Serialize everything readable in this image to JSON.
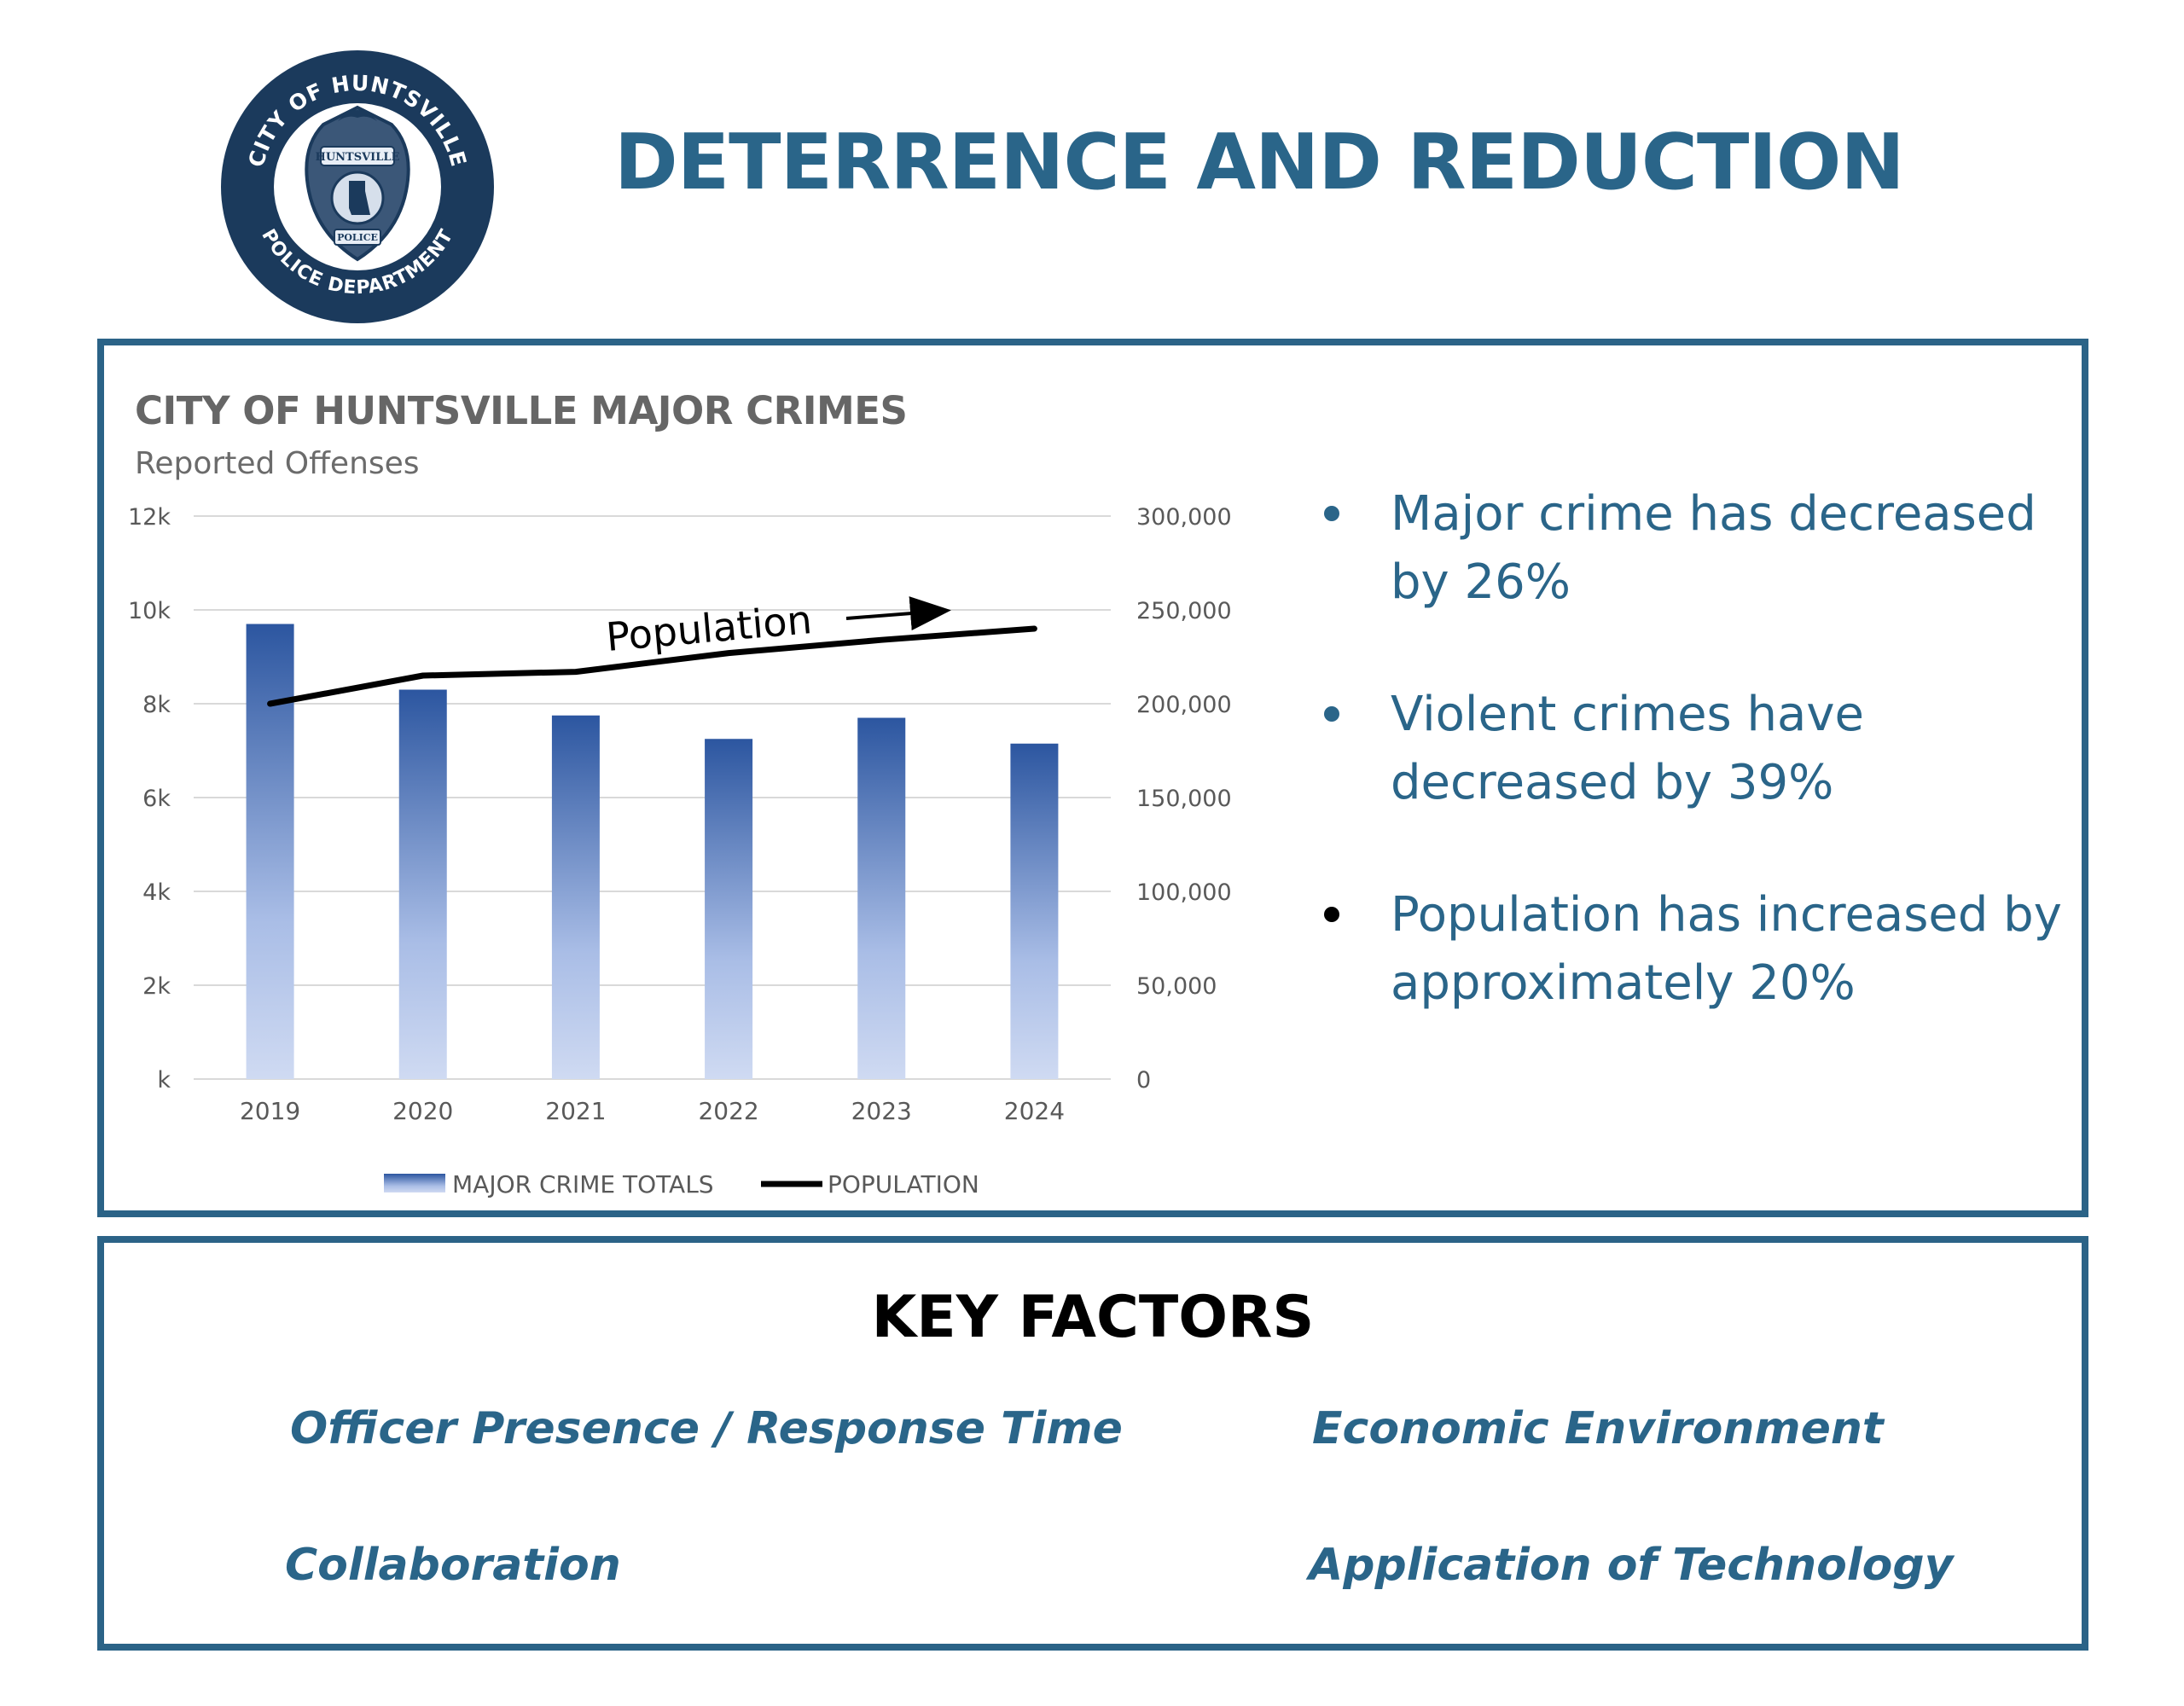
{
  "logo": {
    "top_text": "CITY OF HUNTSVILLE",
    "bottom_text": "POLICE DEPARTMENT",
    "badge_text_top": "HUNTSVILLE",
    "badge_text_bottom": "POLICE",
    "colors": {
      "ring": "#1b3a5c",
      "badge": "#3b5778"
    }
  },
  "page_title": "DETERRENCE AND REDUCTION",
  "colors": {
    "accent": "#2a6589",
    "border": "#2b6387",
    "bar_top": "#2c56a0",
    "bar_bottom": "#cfdaf2",
    "gridline": "#d9d9d9",
    "axis_text": "#595959"
  },
  "chart_data": {
    "type": "bar",
    "title": "CITY OF HUNTSVILLE MAJOR CRIMES",
    "subtitle": "Reported Offenses",
    "categories": [
      "2019",
      "2020",
      "2021",
      "2022",
      "2023",
      "2024"
    ],
    "series": [
      {
        "name": "MAJOR CRIME TOTALS",
        "type": "bar",
        "axis": "left",
        "values": [
          9700,
          8300,
          7750,
          7250,
          7700,
          7150
        ]
      },
      {
        "name": "POPULATION",
        "type": "line",
        "axis": "right",
        "values": [
          200000,
          215000,
          217000,
          227000,
          234000,
          240000
        ]
      }
    ],
    "y_left": {
      "ylim": [
        0,
        12000
      ],
      "ticks": [
        0,
        2000,
        4000,
        6000,
        8000,
        10000,
        12000
      ],
      "tick_labels": [
        "k",
        "2k",
        "4k",
        "6k",
        "8k",
        "10k",
        "12k"
      ]
    },
    "y_right": {
      "ylim": [
        0,
        300000
      ],
      "ticks": [
        0,
        50000,
        100000,
        150000,
        200000,
        250000,
        300000
      ],
      "tick_labels": [
        "0",
        "50,000",
        "100,000",
        "150,000",
        "200,000",
        "250,000",
        "300,000"
      ]
    },
    "grid": true,
    "legend": {
      "position": "bottom",
      "entries": [
        "MAJOR CRIME TOTALS",
        "POPULATION"
      ]
    },
    "annotation": {
      "text": "Population",
      "arrow": "right"
    }
  },
  "bullets": [
    "Major crime has decreased by 26%",
    "Violent crimes have decreased by 39%",
    "Population has increased by approximately 20%"
  ],
  "key_factors": {
    "title": "KEY FACTORS",
    "items": [
      "Officer Presence / Response Time",
      "Economic Environment",
      "Collaboration",
      "Application of Technology"
    ]
  }
}
